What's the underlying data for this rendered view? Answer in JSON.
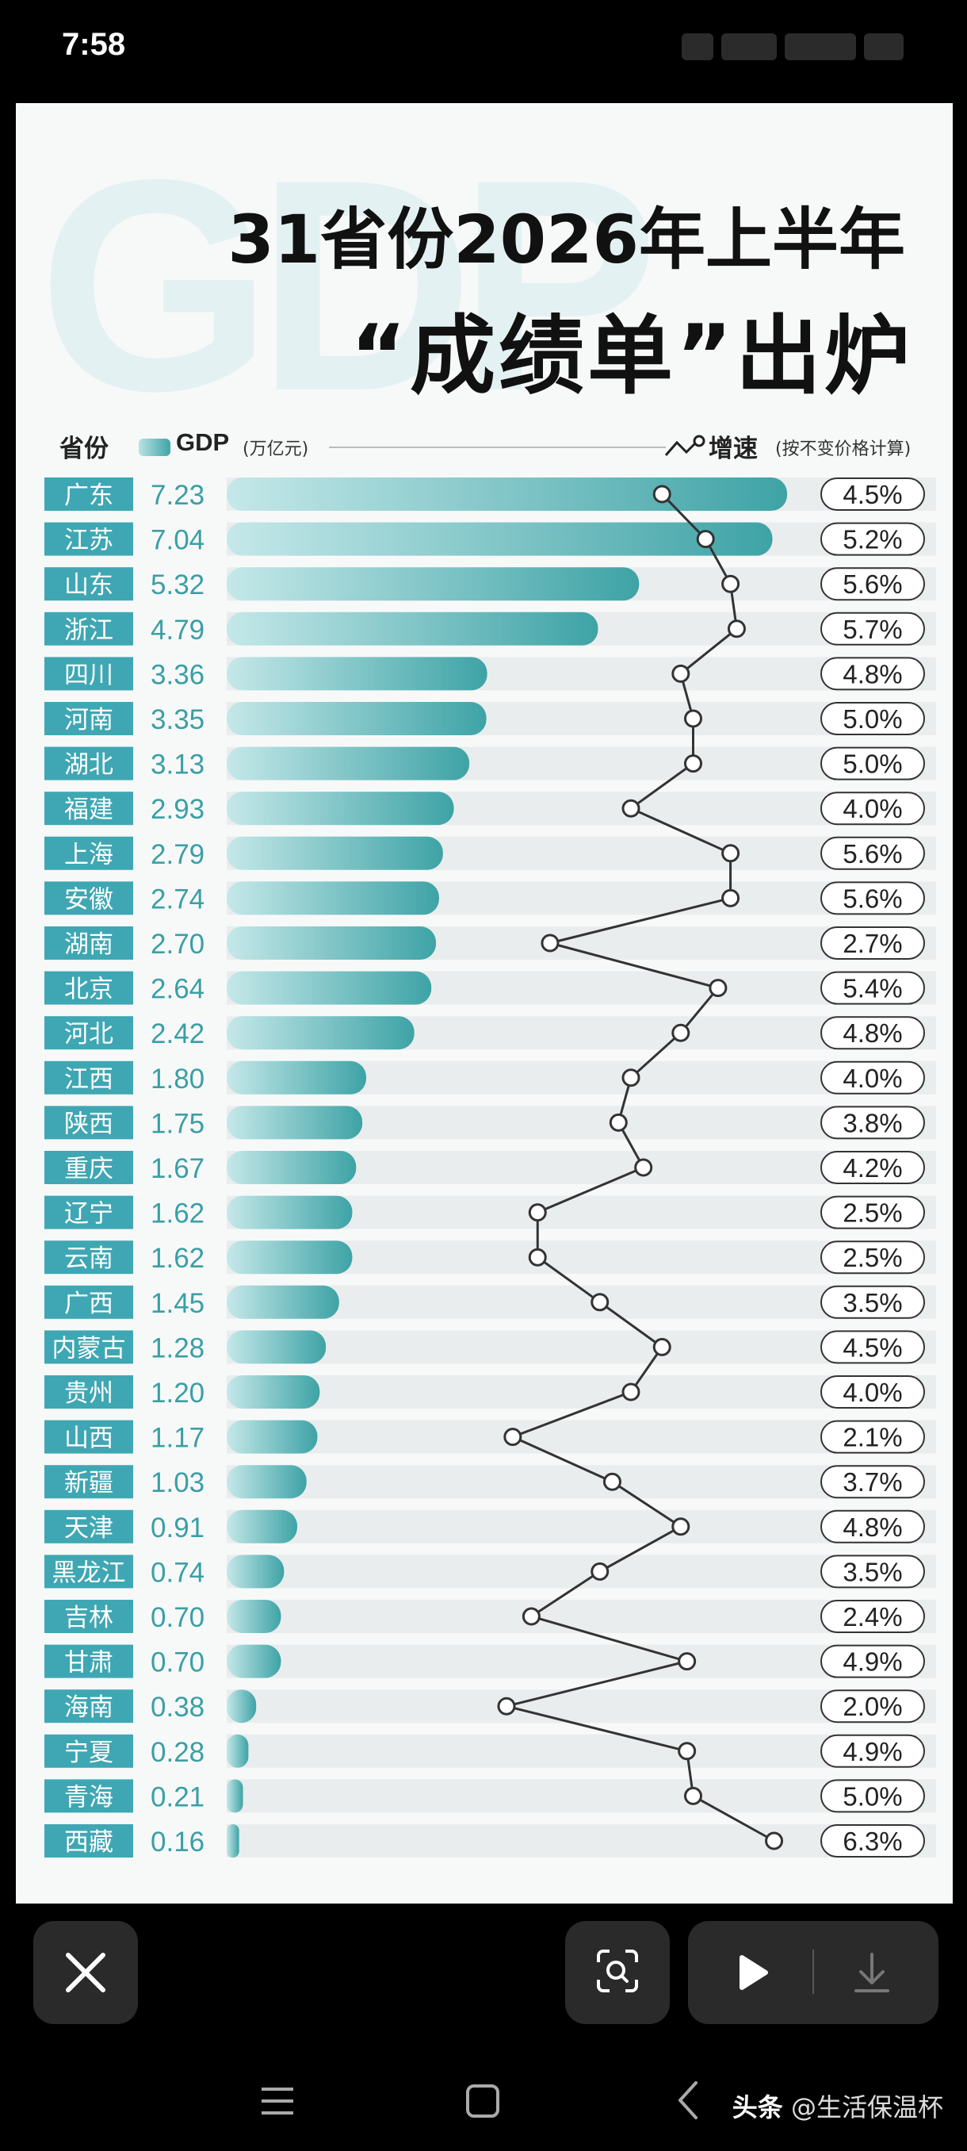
{
  "status_bar": {
    "time": "7:58"
  },
  "infographic": {
    "watermark": "GDP",
    "title_line1": "31省份2026年上半年",
    "title_line2": "“成绩单”出炉",
    "legend": {
      "province": "省份",
      "gdp": "GDP",
      "gdp_unit": "(万亿元)",
      "growth": "增速",
      "growth_note": "(按不变价格计算)"
    }
  },
  "chart_data": {
    "type": "bar",
    "title": "31省份2026年上半年“成绩单”出炉",
    "categories": [
      "广东",
      "江苏",
      "山东",
      "浙江",
      "四川",
      "河南",
      "湖北",
      "福建",
      "上海",
      "安徽",
      "湖南",
      "北京",
      "河北",
      "江西",
      "陕西",
      "重庆",
      "辽宁",
      "云南",
      "广西",
      "内蒙古",
      "贵州",
      "山西",
      "新疆",
      "天津",
      "黑龙江",
      "吉林",
      "甘肃",
      "海南",
      "宁夏",
      "青海",
      "西藏"
    ],
    "series": [
      {
        "name": "GDP",
        "unit": "万亿元",
        "type": "bar",
        "values": [
          7.23,
          7.04,
          5.32,
          4.79,
          3.36,
          3.35,
          3.13,
          2.93,
          2.79,
          2.74,
          2.7,
          2.64,
          2.42,
          1.8,
          1.75,
          1.67,
          1.62,
          1.62,
          1.45,
          1.28,
          1.2,
          1.17,
          1.03,
          0.91,
          0.74,
          0.7,
          0.7,
          0.38,
          0.28,
          0.21,
          0.16
        ],
        "labels": [
          "7.23",
          "7.04",
          "5.32",
          "4.79",
          "3.36",
          "3.35",
          "3.13",
          "2.93",
          "2.79",
          "2.74",
          "2.70",
          "2.64",
          "2.42",
          "1.80",
          "1.75",
          "1.67",
          "1.62",
          "1.62",
          "1.45",
          "1.28",
          "1.20",
          "1.17",
          "1.03",
          "0.91",
          "0.74",
          "0.70",
          "0.70",
          "0.38",
          "0.28",
          "0.21",
          "0.16"
        ]
      },
      {
        "name": "增速",
        "type": "line",
        "values": [
          4.5,
          5.2,
          5.6,
          5.7,
          4.8,
          5.0,
          5.0,
          4.0,
          5.6,
          5.6,
          2.7,
          5.4,
          4.8,
          4.0,
          3.8,
          4.2,
          2.5,
          2.5,
          3.5,
          4.5,
          4.0,
          2.1,
          3.7,
          4.8,
          3.5,
          2.4,
          4.9,
          2.0,
          4.9,
          5.0,
          6.3
        ],
        "labels": [
          "4.5%",
          "5.2%",
          "5.6%",
          "5.7%",
          "4.8%",
          "5.0%",
          "5.0%",
          "4.0%",
          "5.6%",
          "5.6%",
          "2.7%",
          "5.4%",
          "4.8%",
          "4.0%",
          "3.8%",
          "4.2%",
          "2.5%",
          "2.5%",
          "3.5%",
          "4.5%",
          "4.0%",
          "2.1%",
          "3.7%",
          "4.8%",
          "3.5%",
          "2.4%",
          "4.9%",
          "2.0%",
          "4.9%",
          "5.0%",
          "6.3%"
        ]
      }
    ],
    "colors": {
      "bar_start": "#c5e8e9",
      "bar_end": "#3ea3a6",
      "label_bg": "#3fa7b3",
      "value_text": "#3a9fa6",
      "track": "#eaeded"
    }
  },
  "toolbar": {
    "close_icon": "close-icon",
    "scan_icon": "scan-icon",
    "play_icon": "play-icon",
    "download_icon": "download-icon"
  },
  "nav": {
    "menu_icon": "menu-icon",
    "home_icon": "home-icon",
    "back_icon": "back-icon",
    "source_app": "头条",
    "source_user": "@生活保温杯"
  }
}
